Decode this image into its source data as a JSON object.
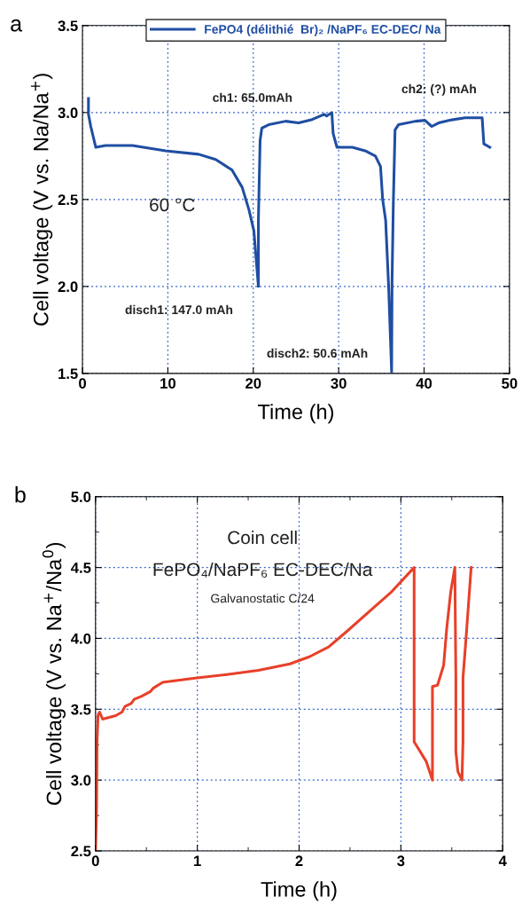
{
  "chart_data": [
    {
      "type": "line",
      "title": "a",
      "xlabel": "Time (h)",
      "ylabel": "Cell voltage (V vs. Na/Na$^{+}$)",
      "xlim": [
        0,
        50
      ],
      "ylim": [
        1.5,
        3.5
      ],
      "xticks": [
        0,
        10,
        20,
        30,
        40,
        50
      ],
      "yticks": [
        1.5,
        {
          "value": 2,
          "label": "2.0"
        },
        2.5,
        {
          "value": 3,
          "label": "3.0"
        },
        3.5
      ],
      "grid": true,
      "legend": "top",
      "marker": "none",
      "line_style": "solid",
      "series": [
        {
          "name": "FePO4 (délithié  Br)₂ /NaPF₆ EC-DEC/ Na",
          "color": "#1f4ea3",
          "x": [
            0.7,
            0.7,
            0.97,
            1.56,
            2.7,
            5.85,
            9.74,
            13.6,
            15.6,
            17.5,
            18.7,
            19.5,
            20.07,
            20.6,
            20.6,
            20.65,
            20.8,
            21.0,
            21.8,
            23.8,
            25.3,
            26.9,
            28.3,
            28.6,
            29.2,
            29.35,
            29.8,
            31.6,
            33.1,
            34.3,
            34.9,
            35.15,
            35.5,
            35.85,
            36.2,
            36.25,
            36.4,
            36.6,
            37.0,
            39.0,
            40.1,
            40.9,
            41.7,
            42.9,
            44.8,
            46.8,
            47.0,
            47.7
          ],
          "values": [
            3.08,
            2.99,
            2.92,
            2.8,
            2.81,
            2.81,
            2.78,
            2.76,
            2.73,
            2.67,
            2.57,
            2.44,
            2.32,
            2.0,
            2.38,
            2.5,
            2.84,
            2.91,
            2.93,
            2.95,
            2.94,
            2.96,
            2.99,
            2.98,
            3.0,
            2.88,
            2.8,
            2.8,
            2.78,
            2.75,
            2.69,
            2.5,
            2.38,
            2.0,
            1.51,
            2.03,
            2.48,
            2.9,
            2.93,
            2.95,
            2.955,
            2.92,
            2.94,
            2.955,
            2.97,
            2.97,
            2.82,
            2.8
          ]
        }
      ],
      "annotations": [
        "ch1: 65.0mAh",
        "ch2: (?) mAh",
        "disch1: 147.0 mAh",
        "disch2: 50.6 mAh",
        "60 °C"
      ]
    },
    {
      "type": "line",
      "title": "b",
      "xlabel": "Time (h)",
      "ylabel": "Cell voltage (V vs. Na$^{+}$/Na$^{0}$)",
      "xlim": [
        0,
        4
      ],
      "ylim": [
        2.5,
        5.0
      ],
      "xticks": [
        0,
        1,
        2,
        3,
        4
      ],
      "yticks": [
        2.5,
        {
          "value": 3,
          "label": "3.0"
        },
        3.5,
        {
          "value": 4,
          "label": "4.0"
        },
        4.5,
        {
          "value": 5,
          "label": "5.0"
        }
      ],
      "grid": true,
      "marker": "none",
      "line_style": "solid",
      "series": [
        {
          "color": "#e8402a",
          "x": [
            0,
            0.01,
            0.015,
            0.025,
            0.04,
            0.07,
            0.2,
            0.26,
            0.29,
            0.35,
            0.38,
            0.45,
            0.54,
            0.57,
            0.66,
            0.98,
            1.29,
            1.6,
            1.91,
            2.1,
            2.29,
            2.47,
            2.69,
            2.91,
            3.13,
            3.13,
            3.25,
            3.31,
            3.31,
            3.31,
            3.36,
            3.42,
            3.45,
            3.49,
            3.53,
            3.54,
            3.54,
            3.56,
            3.6,
            3.61,
            3.61,
            3.61,
            3.64,
            3.69
          ],
          "values": [
            2.5,
            2.8,
            3.27,
            3.46,
            3.48,
            3.43,
            3.455,
            3.48,
            3.52,
            3.54,
            3.57,
            3.59,
            3.625,
            3.65,
            3.69,
            3.72,
            3.745,
            3.775,
            3.82,
            3.87,
            3.94,
            4.05,
            4.19,
            4.33,
            4.5,
            3.27,
            3.13,
            3.0,
            3.5,
            3.66,
            3.67,
            3.81,
            4.07,
            4.33,
            4.5,
            3.72,
            3.2,
            3.06,
            3.0,
            3.27,
            3.5,
            3.72,
            4.0,
            4.5
          ]
        }
      ],
      "annotations": [
        "Coin cell",
        "FePO₄/NaPF₆ EC-DEC/Na",
        "Galvanostatic C/24"
      ]
    }
  ]
}
